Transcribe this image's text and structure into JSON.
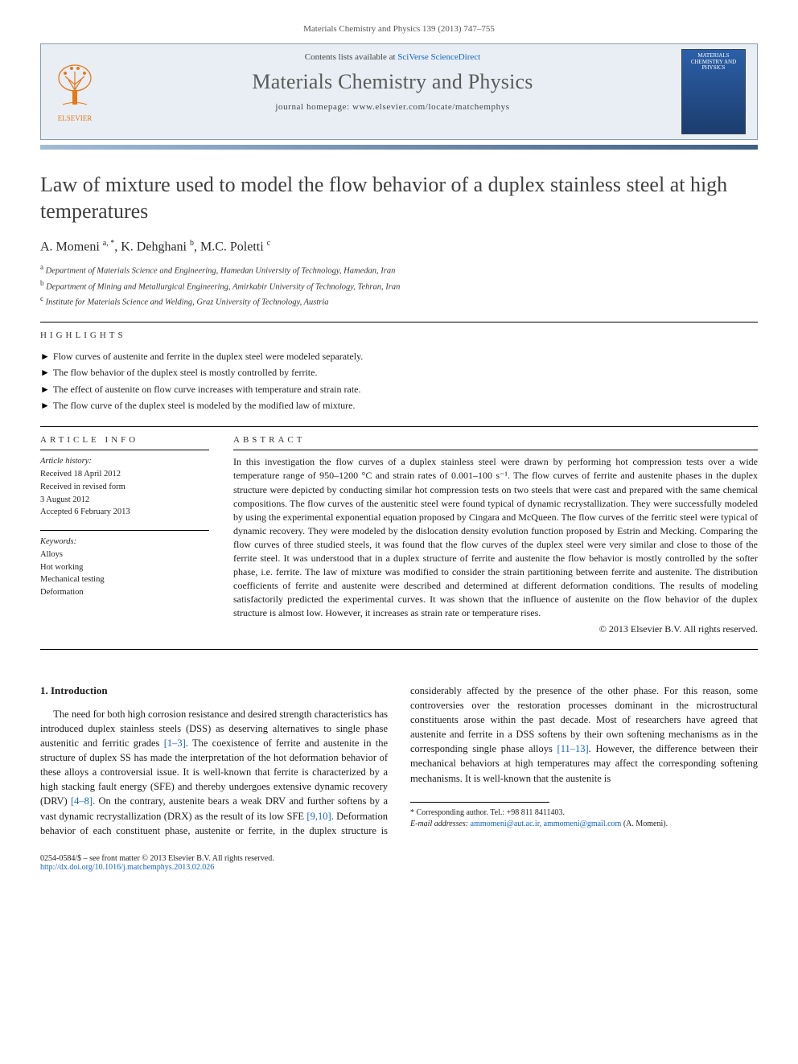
{
  "citation_header": "Materials Chemistry and Physics 139 (2013) 747–755",
  "header": {
    "contents_prefix": "Contents lists available at ",
    "contents_link": "SciVerse ScienceDirect",
    "journal_name": "Materials Chemistry and Physics",
    "homepage_label": "journal homepage: ",
    "homepage_url": "www.elsevier.com/locate/matchemphys",
    "publisher_logo_text": "ELSEVIER",
    "cover_text": "MATERIALS CHEMISTRY AND PHYSICS"
  },
  "title": "Law of mixture used to model the flow behavior of a duplex stainless steel at high temperatures",
  "authors_html": "A. Momeni <sup>a, *</sup>, K. Dehghani <sup>b</sup>, M.C. Poletti <sup>c</sup>",
  "affiliations": [
    "a Department of Materials Science and Engineering, Hamedan University of Technology, Hamedan, Iran",
    "b Department of Mining and Metallurgical Engineering, Amirkabir University of Technology, Tehran, Iran",
    "c Institute for Materials Science and Welding, Graz University of Technology, Austria"
  ],
  "highlights_label": "HIGHLIGHTS",
  "highlights": [
    "Flow curves of austenite and ferrite in the duplex steel were modeled separately.",
    "The flow behavior of the duplex steel is mostly controlled by ferrite.",
    "The effect of austenite on flow curve increases with temperature and strain rate.",
    "The flow curve of the duplex steel is modeled by the modified law of mixture."
  ],
  "article_info_label": "ARTICLE INFO",
  "history_head": "Article history:",
  "history": [
    "Received 18 April 2012",
    "Received in revised form",
    "3 August 2012",
    "Accepted 6 February 2013"
  ],
  "keywords_head": "Keywords:",
  "keywords": [
    "Alloys",
    "Hot working",
    "Mechanical testing",
    "Deformation"
  ],
  "abstract_label": "ABSTRACT",
  "abstract": "In this investigation the flow curves of a duplex stainless steel were drawn by performing hot compression tests over a wide temperature range of 950–1200 °C and strain rates of 0.001–100 s⁻¹. The flow curves of ferrite and austenite phases in the duplex structure were depicted by conducting similar hot compression tests on two steels that were cast and prepared with the same chemical compositions. The flow curves of the austenitic steel were found typical of dynamic recrystallization. They were successfully modeled by using the experimental exponential equation proposed by Cingara and McQueen. The flow curves of the ferritic steel were typical of dynamic recovery. They were modeled by the dislocation density evolution function proposed by Estrin and Mecking. Comparing the flow curves of three studied steels, it was found that the flow curves of the duplex steel were very similar and close to those of the ferrite steel. It was understood that in a duplex structure of ferrite and austenite the flow behavior is mostly controlled by the softer phase, i.e. ferrite. The law of mixture was modified to consider the strain partitioning between ferrite and austenite. The distribution coefficients of ferrite and austenite were described and determined at different deformation conditions. The results of modeling satisfactorily predicted the experimental curves. It was shown that the influence of austenite on the flow behavior of the duplex structure is almost low. However, it increases as strain rate or temperature rises.",
  "copyright": "© 2013 Elsevier B.V. All rights reserved.",
  "intro_head": "1. Introduction",
  "intro_p1_a": "The need for both high corrosion resistance and desired strength characteristics has introduced duplex stainless steels (DSS) as deserving alternatives to single phase austenitic and ferritic grades ",
  "intro_cite1": "[1–3]",
  "intro_p1_b": ". The coexistence of ferrite and austenite in the structure of duplex SS has made the interpretation of the hot deformation behavior of these alloys a controversial issue. It is well-known that ferrite is characterized by a high stacking fault energy (SFE) and ",
  "intro_p2_a": "thereby undergoes extensive dynamic recovery (DRV) ",
  "intro_cite2": "[4–8]",
  "intro_p2_b": ". On the contrary, austenite bears a weak DRV and further softens by a vast dynamic recrystallization (DRX) as the result of its low SFE ",
  "intro_cite3": "[9,10]",
  "intro_p2_c": ". Deformation behavior of each constituent phase, austenite or ferrite, in the duplex structure is considerably affected by the presence of the other phase. For this reason, some controversies over the restoration processes dominant in the microstructural constituents arose within the past decade. Most of researchers have agreed that austenite and ferrite in a DSS softens by their own softening mechanisms as in the corresponding single phase alloys ",
  "intro_cite4": "[11–13]",
  "intro_p2_d": ". However, the difference between their mechanical behaviors at high temperatures may affect the corresponding softening mechanisms. It is well-known that the austenite is ",
  "corr_author": "* Corresponding author. Tel.: +98 811 8411403.",
  "email_label": "E-mail addresses: ",
  "emails": "ammomeni@aut.ac.ir, ammomeni@gmail.com",
  "email_who": " (A. Momeni).",
  "front_matter": "0254-0584/$ – see front matter © 2013 Elsevier B.V. All rights reserved.",
  "doi": "http://dx.doi.org/10.1016/j.matchemphys.2013.02.026",
  "colors": {
    "link": "#1565c0",
    "header_bg": "#e8eef4",
    "header_border": "#8a9db0",
    "elsevier_orange": "#e67817",
    "grad_start": "#a2bcd6",
    "grad_end": "#3f5f83"
  }
}
